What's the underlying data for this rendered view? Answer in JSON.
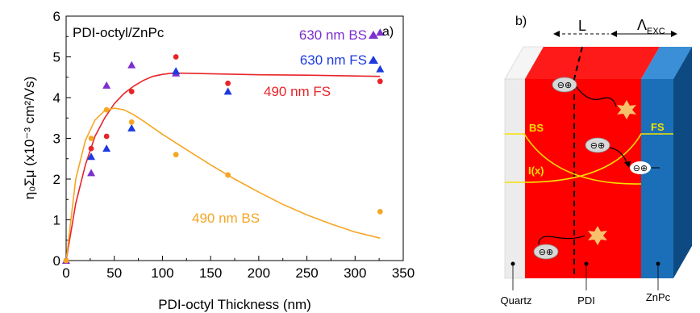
{
  "chart_data": {
    "type": "scatter",
    "panel_label": "a)",
    "inset_title": "PDI-octyl/ZnPc",
    "xlabel": "PDI-octyl Thickness (nm)",
    "ylabel": "η₀Σμ (x10⁻³ cm²/Vs)",
    "xlim": [
      0,
      350
    ],
    "ylim": [
      0,
      6
    ],
    "xticks": [
      "0",
      "50",
      "100",
      "150",
      "200",
      "250",
      "300",
      "350"
    ],
    "yticks": [
      "0",
      "1",
      "2",
      "3",
      "4",
      "5",
      "6"
    ],
    "grid": false,
    "legend": "top-right",
    "series": [
      {
        "name": "630 nm BS",
        "marker": "triangle",
        "color": "#7d2fd0",
        "x": [
          0,
          26,
          42,
          68,
          114,
          326
        ],
        "y": [
          0,
          2.15,
          4.3,
          4.8,
          4.6,
          5.6
        ]
      },
      {
        "name": "630 nm FS",
        "marker": "triangle",
        "color": "#1c3ae0",
        "x": [
          26,
          42,
          68,
          114,
          168,
          326
        ],
        "y": [
          2.55,
          2.75,
          3.25,
          4.65,
          4.15,
          4.7
        ]
      },
      {
        "name": "490 nm FS",
        "marker": "circle",
        "color": "#e8242a",
        "x": [
          0,
          26,
          42,
          68,
          114,
          168,
          326
        ],
        "y": [
          0,
          2.75,
          3.05,
          4.15,
          5.0,
          4.35,
          4.4
        ]
      },
      {
        "name": "490 nm BS",
        "marker": "circle",
        "color": "#f5a623",
        "x": [
          0,
          26,
          42,
          68,
          114,
          168,
          326
        ],
        "y": [
          0,
          3.0,
          3.7,
          3.4,
          2.6,
          2.1,
          1.2
        ]
      }
    ],
    "fits": [
      {
        "color": "#e8242a",
        "x": [
          0,
          10,
          20,
          30,
          40,
          50,
          60,
          70,
          80,
          90,
          100,
          110,
          120,
          140,
          160,
          200,
          250,
          300,
          326
        ],
        "y": [
          0,
          1.4,
          2.35,
          3.05,
          3.5,
          3.85,
          4.1,
          4.28,
          4.42,
          4.52,
          4.57,
          4.6,
          4.6,
          4.59,
          4.58,
          4.56,
          4.55,
          4.53,
          4.52
        ]
      },
      {
        "color": "#f5a623",
        "x": [
          0,
          10,
          20,
          30,
          40,
          50,
          60,
          70,
          80,
          100,
          125,
          150,
          175,
          200,
          225,
          250,
          275,
          300,
          326
        ],
        "y": [
          0,
          2.0,
          2.95,
          3.45,
          3.68,
          3.74,
          3.7,
          3.58,
          3.43,
          3.1,
          2.72,
          2.35,
          2.0,
          1.68,
          1.38,
          1.12,
          0.9,
          0.7,
          0.55
        ]
      }
    ],
    "annotations": [
      {
        "text": "490 nm FS",
        "color": "#e8242a"
      },
      {
        "text": "490 nm BS",
        "color": "#f5a623"
      }
    ]
  },
  "diagram": {
    "panel_label": "b)",
    "dimension_L": "L",
    "dimension_exc_main": "Λ",
    "dimension_exc_sub": "EXC",
    "label_bs": "BS",
    "label_fs": "FS",
    "label_intensity": "I(x)",
    "charge_pair": "⊖⊕",
    "layers": [
      "Quartz",
      "PDI",
      "ZnPc"
    ],
    "colors": {
      "quartz": "#ececec",
      "pdi": "#ff0000",
      "znpc": "#1b6fb8",
      "curve": "#f5e000"
    }
  }
}
